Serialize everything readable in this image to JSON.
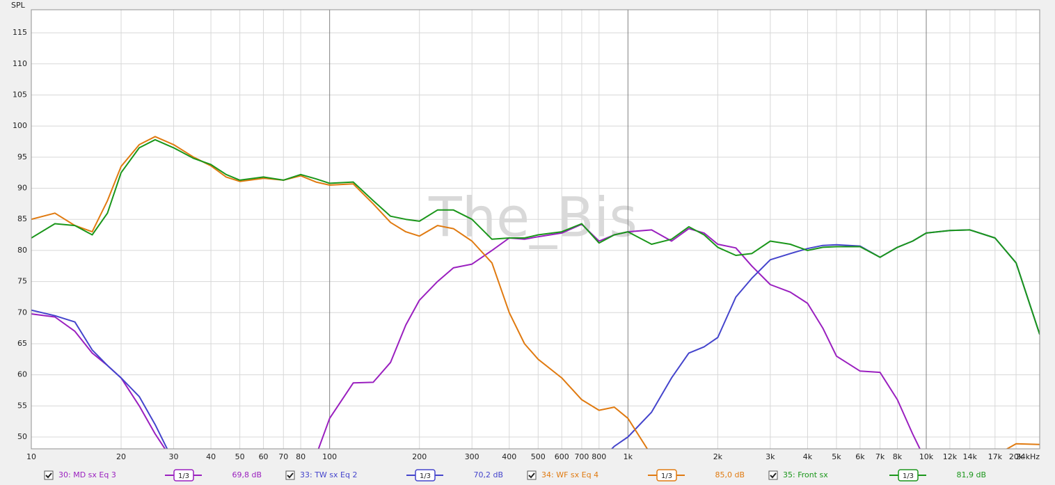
{
  "chart_data": {
    "type": "line",
    "y_label": "SPL",
    "watermark": "The_Bis",
    "xscale": "log",
    "grid": true,
    "xlim": [
      10,
      24000
    ],
    "ylim": [
      48.1,
      118.7
    ],
    "yticks": [
      50,
      55,
      60,
      65,
      70,
      75,
      80,
      85,
      90,
      95,
      100,
      105,
      110,
      115
    ],
    "xticks": [
      10,
      20,
      30,
      40,
      50,
      60,
      70,
      80,
      100,
      200,
      300,
      400,
      500,
      600,
      700,
      800,
      {
        "value": 1000,
        "label": "1k"
      },
      {
        "value": 2000,
        "label": "2k"
      },
      {
        "value": 3000,
        "label": "3k"
      },
      {
        "value": 4000,
        "label": "4k"
      },
      {
        "value": 5000,
        "label": "5k"
      },
      {
        "value": 6000,
        "label": "6k"
      },
      {
        "value": 7000,
        "label": "7k"
      },
      {
        "value": 8000,
        "label": "8k"
      },
      {
        "value": 10000,
        "label": "10k"
      },
      {
        "value": 12000,
        "label": "12k"
      },
      {
        "value": 14000,
        "label": "14k"
      },
      {
        "value": 17000,
        "label": "17k"
      },
      {
        "value": 20000,
        "label": "20k"
      },
      {
        "value": 24000,
        "label": "24kHz"
      }
    ],
    "x": [
      10,
      12,
      14,
      16,
      18,
      20,
      23,
      26,
      30,
      35,
      40,
      45,
      50,
      60,
      70,
      80,
      90,
      100,
      120,
      140,
      160,
      180,
      200,
      230,
      260,
      300,
      350,
      400,
      450,
      500,
      600,
      700,
      800,
      900,
      1000,
      1200,
      1400,
      1600,
      1800,
      2000,
      2300,
      2600,
      3000,
      3500,
      4000,
      4500,
      5000,
      6000,
      7000,
      8000,
      9000,
      10000,
      12000,
      14000,
      17000,
      20000,
      24000
    ],
    "series": [
      {
        "name": "30: MD sx Eq 3",
        "smoothing": "1/3",
        "level_label": "69,8 dB",
        "color": "#9a1fbf",
        "values": [
          69.8,
          69.3,
          67,
          63.5,
          61.5,
          59.5,
          55,
          50.5,
          46,
          null,
          null,
          null,
          null,
          null,
          null,
          null,
          47,
          53,
          58.7,
          58.8,
          62,
          68,
          72,
          75,
          77.2,
          77.8,
          80,
          82,
          81.8,
          82.2,
          82.8,
          84.2,
          81.5,
          82.5,
          83,
          83.3,
          81.5,
          83.5,
          82.8,
          81,
          80.4,
          77.5,
          74.5,
          73.3,
          71.5,
          67.5,
          63,
          60.6,
          60.4,
          56,
          50.5,
          46,
          null,
          null,
          null,
          null,
          null
        ]
      },
      {
        "name": "33: TW sx Eq 2",
        "smoothing": "1/3",
        "level_label": "70,2 dB",
        "color": "#4444cc",
        "values": [
          70.4,
          69.5,
          68.5,
          64,
          61.5,
          59.5,
          56.5,
          52,
          46,
          null,
          null,
          null,
          null,
          null,
          null,
          null,
          null,
          null,
          null,
          null,
          null,
          null,
          null,
          null,
          null,
          null,
          null,
          null,
          null,
          null,
          null,
          null,
          46,
          48.5,
          50,
          54,
          59.5,
          63.5,
          64.5,
          66,
          72.5,
          75.5,
          78.5,
          79.5,
          80.3,
          80.8,
          80.9,
          80.7,
          78.9,
          80.5,
          81.5,
          82.8,
          83.2,
          83.3,
          82,
          78,
          66.5
        ]
      },
      {
        "name": "34: WF sx Eq 4",
        "smoothing": "1/3",
        "level_label": "85,0 dB",
        "color": "#e07a10",
        "values": [
          85,
          86,
          84,
          83,
          88,
          93.5,
          97,
          98.3,
          97,
          95,
          93.6,
          91.8,
          91.1,
          91.6,
          91.3,
          92,
          91,
          90.5,
          90.7,
          87.5,
          84.5,
          83,
          82.3,
          84,
          83.5,
          81.5,
          78,
          70,
          65,
          62.5,
          59.5,
          56,
          54.3,
          54.8,
          53,
          47,
          null,
          null,
          null,
          null,
          null,
          null,
          null,
          null,
          null,
          null,
          null,
          null,
          null,
          null,
          null,
          null,
          null,
          null,
          47,
          48.9,
          48.8
        ]
      },
      {
        "name": "35: Front sx",
        "smoothing": "1/3",
        "level_label": "81,9 dB",
        "color": "#1a961a",
        "values": [
          82,
          84.3,
          84,
          82.5,
          86,
          92.5,
          96.5,
          97.8,
          96.5,
          94.8,
          93.8,
          92.2,
          91.3,
          91.8,
          91.3,
          92.2,
          91.5,
          90.8,
          91,
          88,
          85.5,
          85,
          84.7,
          86.5,
          86.5,
          85,
          81.8,
          82,
          82,
          82.5,
          83,
          84.3,
          81.2,
          82.5,
          83,
          81,
          81.8,
          83.8,
          82.5,
          80.5,
          79.2,
          79.5,
          81.5,
          81,
          80,
          80.5,
          80.6,
          80.6,
          78.9,
          80.5,
          81.5,
          82.8,
          83.2,
          83.3,
          82,
          78,
          66.5
        ]
      }
    ]
  }
}
